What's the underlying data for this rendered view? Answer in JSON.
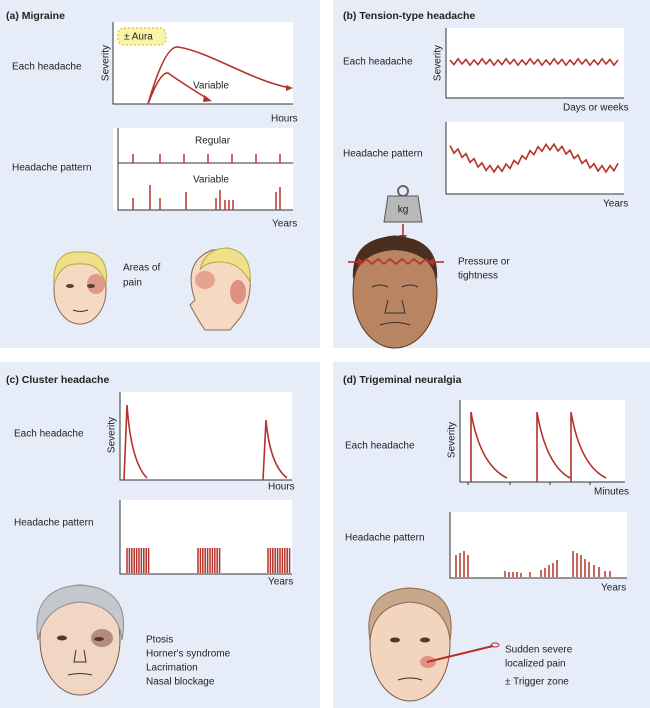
{
  "panels": [
    {
      "title": "(a) Migraine",
      "each_headache": {
        "label": "Each headache",
        "y_axis": "Severity",
        "x_axis": "Hours",
        "annotations": [
          "± Aura",
          "Variable"
        ]
      },
      "headache_pattern": {
        "label": "Headache pattern",
        "x_axis": "Years",
        "annotations": [
          "Regular",
          "Variable"
        ]
      },
      "notes": [
        "Areas of",
        "pain"
      ]
    },
    {
      "title": "(b) Tension-type headache",
      "each_headache": {
        "label": "Each headache",
        "y_axis": "Severity",
        "x_axis": "Days or weeks"
      },
      "headache_pattern": {
        "label": "Headache pattern",
        "x_axis": "Years"
      },
      "notes": [
        "kg",
        "Pressure or",
        "tightness"
      ]
    },
    {
      "title": "(c) Cluster headache",
      "each_headache": {
        "label": "Each headache",
        "y_axis": "Severity",
        "x_axis": "Hours"
      },
      "headache_pattern": {
        "label": "Headache pattern",
        "x_axis": "Years"
      },
      "notes": [
        "Ptosis",
        "Horner's syndrome",
        "Lacrimation",
        "Nasal blockage"
      ]
    },
    {
      "title": "(d) Trigeminal neuralgia",
      "each_headache": {
        "label": "Each headache",
        "y_axis": "Severity",
        "x_axis": "Minutes"
      },
      "headache_pattern": {
        "label": "Headache pattern",
        "x_axis": "Years"
      },
      "notes": [
        "Sudden severe",
        "localized pain",
        "± Trigger zone"
      ]
    }
  ]
}
